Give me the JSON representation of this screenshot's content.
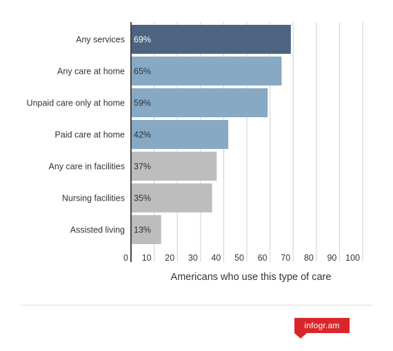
{
  "chart_data": {
    "type": "bar",
    "orientation": "horizontal",
    "categories": [
      "Any services",
      "Any care at home",
      "Unpaid care only at home",
      "Paid care at home",
      "Any care in facilities",
      "Nursing facilities",
      "Assisted living"
    ],
    "values": [
      69,
      65,
      59,
      42,
      37,
      35,
      13
    ],
    "data_labels": [
      "69%",
      "65%",
      "59%",
      "42%",
      "37%",
      "35%",
      "13%"
    ],
    "bar_colors": [
      "#4d6480",
      "#87a9c4",
      "#87a9c4",
      "#87a9c4",
      "#bdbdbd",
      "#bdbdbd",
      "#bdbdbd"
    ],
    "label_colors": [
      "#ffffff",
      "#333333",
      "#333333",
      "#333333",
      "#333333",
      "#333333",
      "#333333"
    ],
    "xticks": [
      0,
      10,
      20,
      30,
      40,
      50,
      60,
      70,
      80,
      90,
      100
    ],
    "xlim": [
      0,
      100
    ],
    "xlabel": "Americans who use this type of care",
    "ylabel": "",
    "grid": true
  },
  "branding": {
    "logo_text": "infogr.am",
    "logo_color": "#d9262a"
  }
}
